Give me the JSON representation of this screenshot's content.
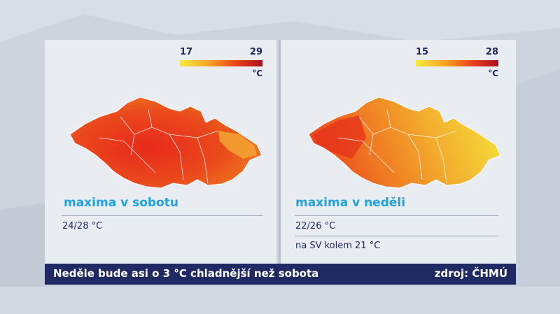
{
  "legend_left": {
    "min": "17",
    "max": "29",
    "unit": "°C"
  },
  "legend_right": {
    "min": "15",
    "max": "28",
    "unit": "°C"
  },
  "panel_left": {
    "title": "maxima v sobotu",
    "range": "24/28 °C"
  },
  "panel_right": {
    "title": "maxima v neděli",
    "range": "22/26 °C",
    "note": "na SV kolem 21 °C"
  },
  "strip": {
    "headline": "Neděle bude asi o 3 °C chladnější než sobota",
    "source": "zdroj: ČHMÚ"
  },
  "colors": {
    "accent": "#1ea3e0",
    "navy": "#1f2a63",
    "hot": "#e5301b",
    "warm": "#f08a1c",
    "cool": "#f5e13a"
  }
}
